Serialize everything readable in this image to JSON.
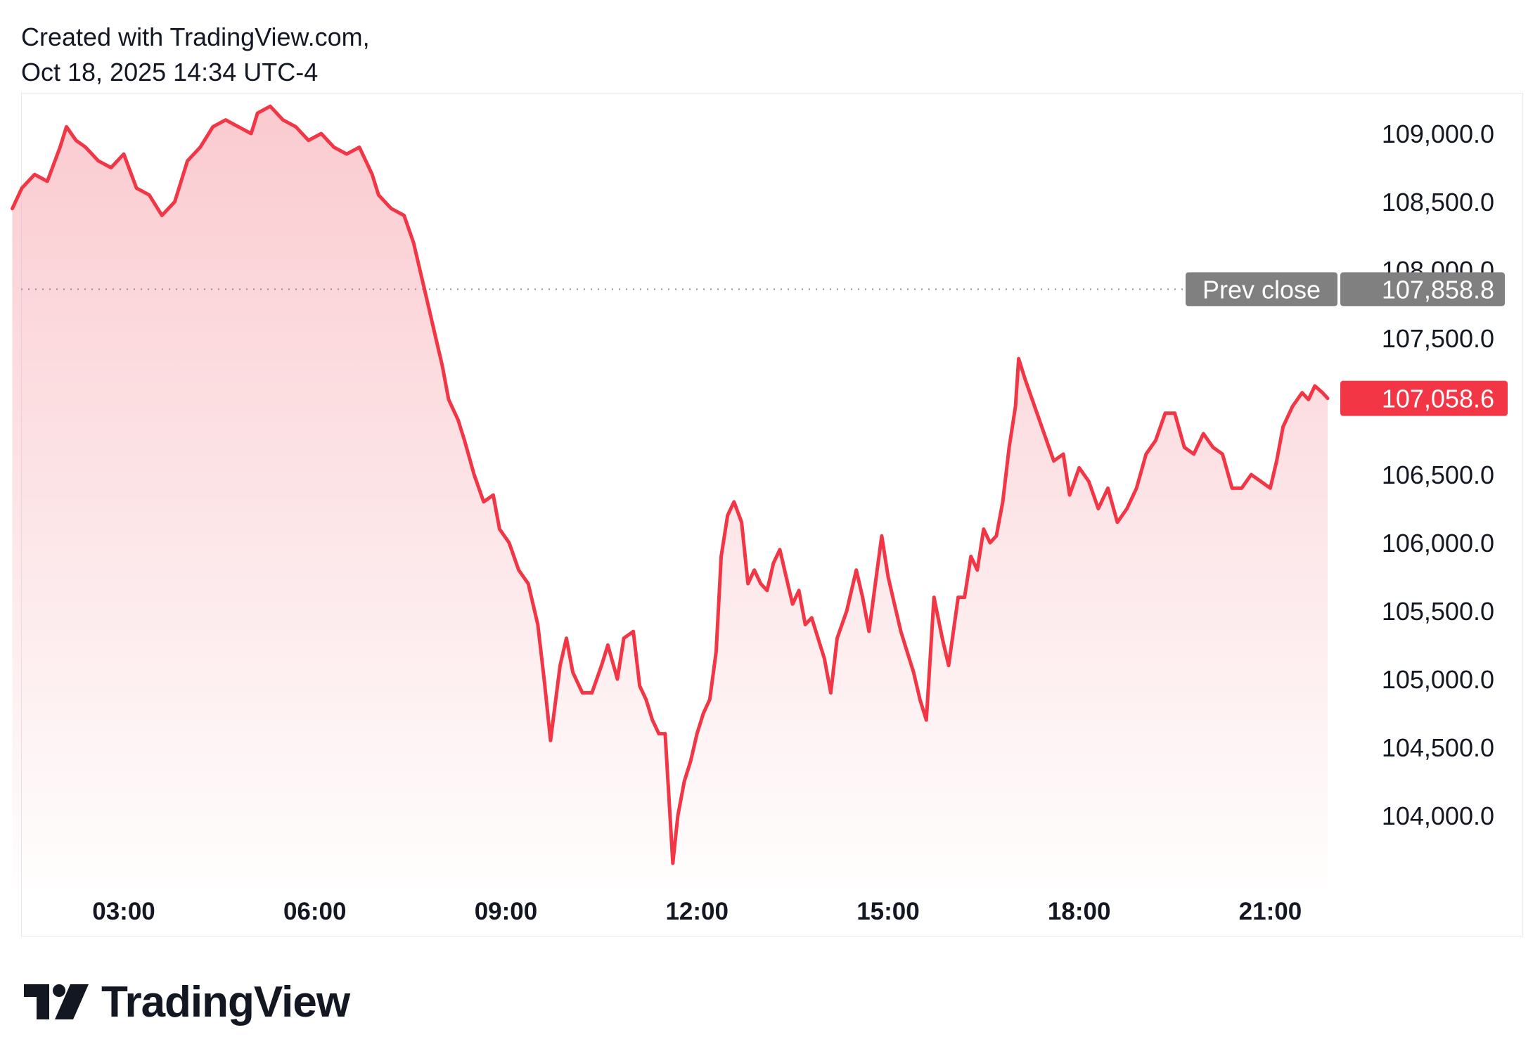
{
  "header": {
    "line1": "Created with TradingView.com,",
    "line2": "Oct 18, 2025 14:34 UTC-4"
  },
  "brand": {
    "name": "TradingView",
    "logo_icon": "tradingview-logo-icon"
  },
  "colors": {
    "line": "#f23645",
    "fill_top": "#f7a8b0",
    "prev_close_label": "#808080",
    "current_label": "#f23645"
  },
  "chart_data": {
    "type": "area",
    "x_ticks": [
      "03:00",
      "06:00",
      "09:00",
      "12:00",
      "15:00",
      "18:00",
      "21:00"
    ],
    "y_ticks": [
      "109,000.0",
      "108,500.0",
      "108,000.0",
      "107,500.0",
      "106,500.0",
      "106,000.0",
      "105,500.0",
      "105,000.0",
      "104,500.0",
      "104,000.0"
    ],
    "ylim": [
      103500,
      109250
    ],
    "xlim_hours": [
      1.25,
      22.8
    ],
    "prev_close": {
      "label": "Prev close",
      "value": 107858.8,
      "text": "107,858.8"
    },
    "last": {
      "value": 107058.6,
      "text": "107,058.6"
    },
    "series": [
      {
        "points": [
          [
            1.25,
            108450
          ],
          [
            1.4,
            108600
          ],
          [
            1.6,
            108700
          ],
          [
            1.8,
            108650
          ],
          [
            2.0,
            108900
          ],
          [
            2.1,
            109050
          ],
          [
            2.25,
            108950
          ],
          [
            2.4,
            108900
          ],
          [
            2.6,
            108800
          ],
          [
            2.8,
            108750
          ],
          [
            3.0,
            108850
          ],
          [
            3.2,
            108600
          ],
          [
            3.4,
            108550
          ],
          [
            3.6,
            108400
          ],
          [
            3.8,
            108500
          ],
          [
            4.0,
            108800
          ],
          [
            4.2,
            108900
          ],
          [
            4.4,
            109050
          ],
          [
            4.6,
            109100
          ],
          [
            4.8,
            109050
          ],
          [
            5.0,
            109000
          ],
          [
            5.1,
            109150
          ],
          [
            5.3,
            109200
          ],
          [
            5.5,
            109100
          ],
          [
            5.7,
            109050
          ],
          [
            5.9,
            108950
          ],
          [
            6.1,
            109000
          ],
          [
            6.3,
            108900
          ],
          [
            6.5,
            108850
          ],
          [
            6.7,
            108900
          ],
          [
            6.9,
            108700
          ],
          [
            7.0,
            108550
          ],
          [
            7.2,
            108450
          ],
          [
            7.4,
            108400
          ],
          [
            7.55,
            108200
          ],
          [
            7.65,
            108000
          ],
          [
            7.75,
            107800
          ],
          [
            7.9,
            107500
          ],
          [
            8.0,
            107300
          ],
          [
            8.1,
            107050
          ],
          [
            8.25,
            106900
          ],
          [
            8.35,
            106750
          ],
          [
            8.5,
            106500
          ],
          [
            8.65,
            106300
          ],
          [
            8.8,
            106350
          ],
          [
            8.9,
            106100
          ],
          [
            9.05,
            106000
          ],
          [
            9.2,
            105800
          ],
          [
            9.35,
            105700
          ],
          [
            9.5,
            105400
          ],
          [
            9.6,
            105000
          ],
          [
            9.7,
            104550
          ],
          [
            9.85,
            105100
          ],
          [
            9.95,
            105300
          ],
          [
            10.05,
            105050
          ],
          [
            10.2,
            104900
          ],
          [
            10.35,
            104900
          ],
          [
            10.5,
            105100
          ],
          [
            10.6,
            105250
          ],
          [
            10.75,
            105000
          ],
          [
            10.85,
            105300
          ],
          [
            11.0,
            105350
          ],
          [
            11.1,
            104950
          ],
          [
            11.2,
            104850
          ],
          [
            11.3,
            104700
          ],
          [
            11.4,
            104600
          ],
          [
            11.5,
            104600
          ],
          [
            11.55,
            104200
          ],
          [
            11.62,
            103650
          ],
          [
            11.7,
            104000
          ],
          [
            11.8,
            104250
          ],
          [
            11.9,
            104400
          ],
          [
            12.0,
            104600
          ],
          [
            12.1,
            104750
          ],
          [
            12.2,
            104850
          ],
          [
            12.3,
            105200
          ],
          [
            12.38,
            105900
          ],
          [
            12.48,
            106200
          ],
          [
            12.58,
            106300
          ],
          [
            12.7,
            106150
          ],
          [
            12.8,
            105700
          ],
          [
            12.9,
            105800
          ],
          [
            13.0,
            105700
          ],
          [
            13.1,
            105650
          ],
          [
            13.2,
            105850
          ],
          [
            13.3,
            105950
          ],
          [
            13.4,
            105750
          ],
          [
            13.5,
            105550
          ],
          [
            13.6,
            105650
          ],
          [
            13.7,
            105400
          ],
          [
            13.8,
            105450
          ],
          [
            13.9,
            105300
          ],
          [
            14.0,
            105150
          ],
          [
            14.1,
            104900
          ],
          [
            14.2,
            105300
          ],
          [
            14.35,
            105500
          ],
          [
            14.5,
            105800
          ],
          [
            14.6,
            105600
          ],
          [
            14.7,
            105350
          ],
          [
            14.8,
            105700
          ],
          [
            14.9,
            106050
          ],
          [
            15.0,
            105750
          ],
          [
            15.1,
            105550
          ],
          [
            15.2,
            105350
          ],
          [
            15.3,
            105200
          ],
          [
            15.4,
            105050
          ],
          [
            15.5,
            104850
          ],
          [
            15.6,
            104700
          ],
          [
            15.72,
            105600
          ],
          [
            15.85,
            105300
          ],
          [
            15.95,
            105100
          ],
          [
            16.1,
            105600
          ],
          [
            16.2,
            105600
          ],
          [
            16.3,
            105900
          ],
          [
            16.4,
            105800
          ],
          [
            16.5,
            106100
          ],
          [
            16.6,
            106000
          ],
          [
            16.7,
            106050
          ],
          [
            16.8,
            106300
          ],
          [
            16.9,
            106700
          ],
          [
            17.0,
            107000
          ],
          [
            17.05,
            107350
          ],
          [
            17.15,
            107200
          ],
          [
            17.3,
            107000
          ],
          [
            17.45,
            106800
          ],
          [
            17.6,
            106600
          ],
          [
            17.75,
            106650
          ],
          [
            17.85,
            106350
          ],
          [
            18.0,
            106550
          ],
          [
            18.15,
            106450
          ],
          [
            18.3,
            106250
          ],
          [
            18.45,
            106400
          ],
          [
            18.6,
            106150
          ],
          [
            18.75,
            106250
          ],
          [
            18.9,
            106400
          ],
          [
            19.05,
            106650
          ],
          [
            19.2,
            106750
          ],
          [
            19.35,
            106950
          ],
          [
            19.5,
            106950
          ],
          [
            19.65,
            106700
          ],
          [
            19.8,
            106650
          ],
          [
            19.95,
            106800
          ],
          [
            20.1,
            106700
          ],
          [
            20.25,
            106650
          ],
          [
            20.4,
            106400
          ],
          [
            20.55,
            106400
          ],
          [
            20.7,
            106500
          ],
          [
            20.85,
            106450
          ],
          [
            21.0,
            106400
          ],
          [
            21.1,
            106600
          ],
          [
            21.2,
            106850
          ],
          [
            21.35,
            107000
          ],
          [
            21.5,
            107100
          ],
          [
            21.6,
            107050
          ],
          [
            21.7,
            107150
          ],
          [
            21.82,
            107100
          ],
          [
            21.9,
            107058.6
          ]
        ]
      }
    ]
  }
}
